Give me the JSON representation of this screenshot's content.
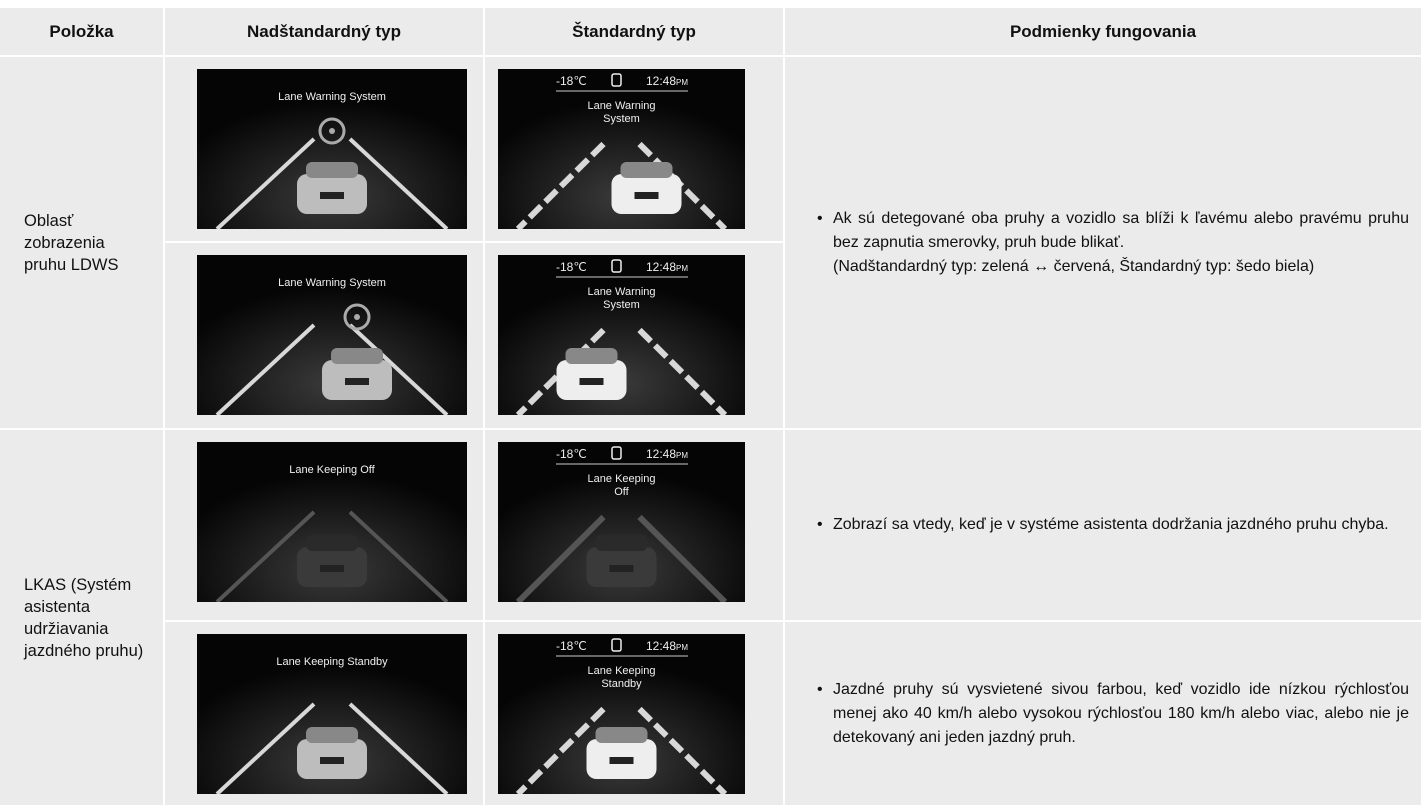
{
  "header": [
    "Položka",
    "Nadštandardný typ",
    "Štandardný typ",
    "Podmienky fungovania"
  ],
  "groups": [
    {
      "item": [
        "Oblasť",
        "zobrazenia",
        "pruhu LDWS"
      ],
      "rows": [
        {
          "premium": "Lane Warning System",
          "standard": {
            "status_bar": {
              "temperature": "-18℃",
              "time": "12:48",
              "suffix": "PM"
            },
            "label": [
              "Lane Warning",
              "System"
            ]
          }
        },
        {
          "premium": "Lane Warning System",
          "standard": {
            "status_bar": {
              "temperature": "-18℃",
              "time": "12:48",
              "suffix": "PM"
            },
            "label": [
              "Lane Warning",
              "System"
            ]
          }
        }
      ],
      "conditions": [
        {
          "text": "Ak sú detegované oba pruhy a vozidlo sa blíži k ľavému alebo pravému pruhu bez zapnutia smerovky, pruh bude blikať.",
          "note": "(Nadštandardný typ: zelená ↔ červená, Štandardný typ: šedo biela)"
        }
      ]
    },
    {
      "item": [
        "LKAS (Systém",
        "asistenta",
        "udržiavania",
        "jazdného pruhu)"
      ],
      "rows": [
        {
          "premium": "Lane Keeping Off",
          "standard": {
            "status_bar": {
              "temperature": "-18℃",
              "time": "12:48",
              "suffix": "PM"
            },
            "label": [
              "Lane Keeping",
              "Off"
            ]
          }
        },
        {
          "premium": "Lane Keeping Standby",
          "standard": {
            "status_bar": {
              "temperature": "-18℃",
              "time": "12:48",
              "suffix": "PM"
            },
            "label": [
              "Lane Keeping",
              "Standby"
            ]
          }
        }
      ],
      "conditions": [
        {
          "text": "Zobrazí sa vtedy, keď je v systéme asistenta dodržania jazdného pruhu chyba."
        },
        {
          "text": "Jazdné pruhy sú vysvietené sivou farbou, keď vozidlo ide nízkou rýchlosťou menej ako 40 km/h alebo vysokou rýchlosťou 180 km/h alebo viac, alebo nie je detekovaný ani jeden jazdný pruh."
        }
      ]
    }
  ]
}
